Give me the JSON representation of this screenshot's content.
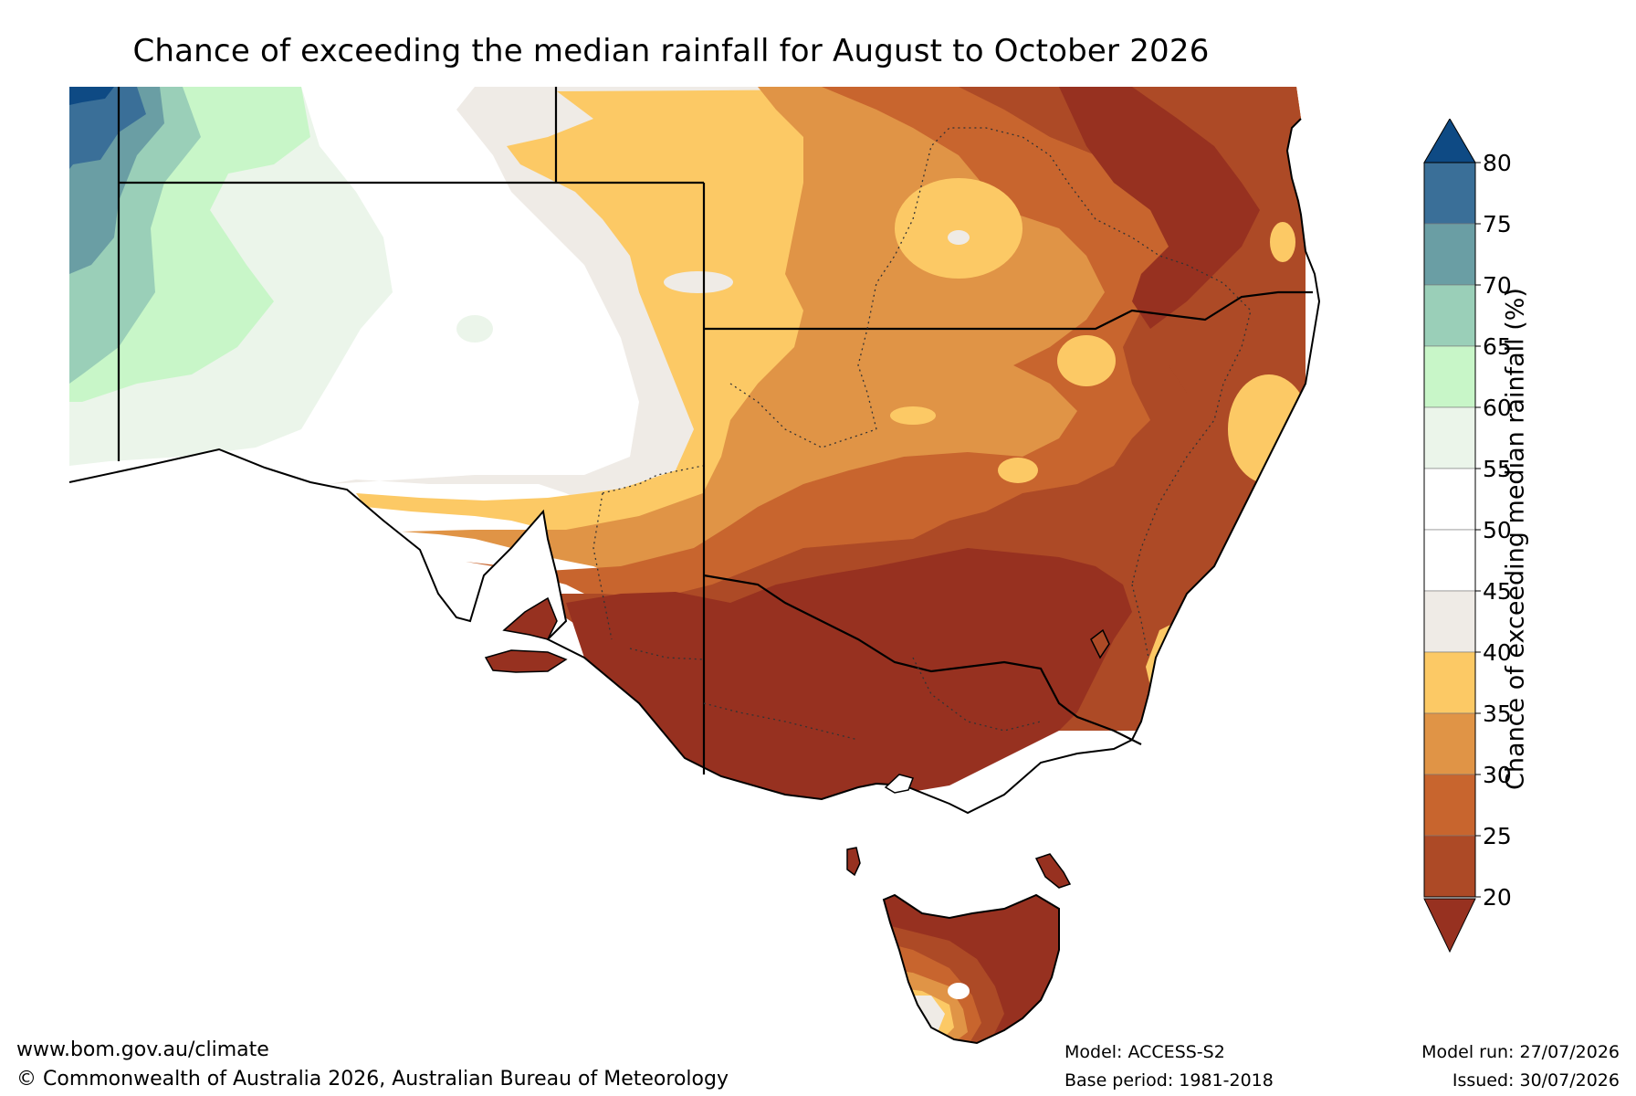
{
  "title": "Chance of exceeding the median rainfall for August to October 2026",
  "colorbar": {
    "title": "Chance of exceeding median rainfall (%)",
    "ticks": [
      "80",
      "75",
      "70",
      "65",
      "60",
      "55",
      "50",
      "45",
      "40",
      "35",
      "30",
      "25",
      "20"
    ],
    "colors": {
      "over80": "#0e4a84",
      "75-80": "#3a6f98",
      "70-75": "#6a9ea4",
      "65-70": "#9acfb8",
      "60-65": "#c8f6c8",
      "55-60": "#ebf5ea",
      "50-55": "#ffffff",
      "45-50": "#ffffff",
      "40-45": "#efebe6",
      "35-40": "#fcc965",
      "30-35": "#e09446",
      "25-30": "#c8652e",
      "20-25": "#ad4a26",
      "under20": "#973120"
    }
  },
  "footer": {
    "website": "www.bom.gov.au/climate",
    "copyright": "© Commonwealth of Australia 2026, Australian Bureau of Meteorology",
    "model": "Model: ACCESS-S2",
    "base_period": "Base period: 1981-2018",
    "model_run": "Model run: 27/07/2026",
    "issued": "Issued: 30/07/2026"
  }
}
